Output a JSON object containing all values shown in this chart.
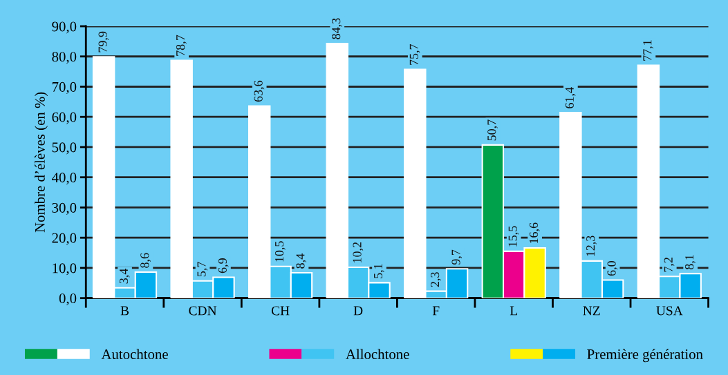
{
  "chart_data": {
    "type": "bar",
    "ylabel": "Nombre d’élèves (en %)",
    "categories": [
      "B",
      "CDN",
      "CH",
      "D",
      "F",
      "L",
      "NZ",
      "USA"
    ],
    "series": [
      {
        "name": "Autochtone",
        "color": "#ffffff",
        "colors": [
          "#ffffff",
          "#ffffff",
          "#ffffff",
          "#ffffff",
          "#ffffff",
          "#00a14b",
          "#ffffff",
          "#ffffff"
        ],
        "values": [
          79.9,
          78.7,
          63.6,
          84.3,
          75.7,
          50.7,
          61.4,
          77.1
        ],
        "value_labels": [
          "79,9",
          "78,7",
          "63,6",
          "84,3",
          "75,7",
          "50,7",
          "61,4",
          "77,1"
        ]
      },
      {
        "name": "Allochtone",
        "color": "#40c4f2",
        "colors": [
          "#40c4f2",
          "#40c4f2",
          "#40c4f2",
          "#40c4f2",
          "#40c4f2",
          "#ec008c",
          "#40c4f2",
          "#40c4f2"
        ],
        "values": [
          3.4,
          5.7,
          10.5,
          10.2,
          2.3,
          15.5,
          12.3,
          7.2
        ],
        "value_labels": [
          "3,4",
          "5,7",
          "10,5",
          "10,2",
          "2,3",
          "15,5",
          "12,3",
          "7,2"
        ]
      },
      {
        "name": "Première génération",
        "color": "#00aeef",
        "colors": [
          "#00aeef",
          "#00aeef",
          "#00aeef",
          "#00aeef",
          "#00aeef",
          "#fff200",
          "#00aeef",
          "#00aeef"
        ],
        "values": [
          8.6,
          6.9,
          8.4,
          5.1,
          9.7,
          16.6,
          6.0,
          8.1
        ],
        "value_labels": [
          "8,6",
          "6,9",
          "8,4",
          "5,1",
          "9,7",
          "16,6",
          "6,0",
          "8,1"
        ]
      }
    ],
    "ylim": [
      0,
      90
    ],
    "yticks": [
      {
        "value": 0,
        "label": "0,0"
      },
      {
        "value": 10,
        "label": "10,0"
      },
      {
        "value": 20,
        "label": "20,0"
      },
      {
        "value": 30,
        "label": "30,0"
      },
      {
        "value": 40,
        "label": "40,0"
      },
      {
        "value": 50,
        "label": "50,0"
      },
      {
        "value": 60,
        "label": "60,0"
      },
      {
        "value": 70,
        "label": "70,0"
      },
      {
        "value": 80,
        "label": "80,0"
      },
      {
        "value": 90,
        "label": "90,0"
      }
    ],
    "grid": "y",
    "legend": "bottom"
  }
}
